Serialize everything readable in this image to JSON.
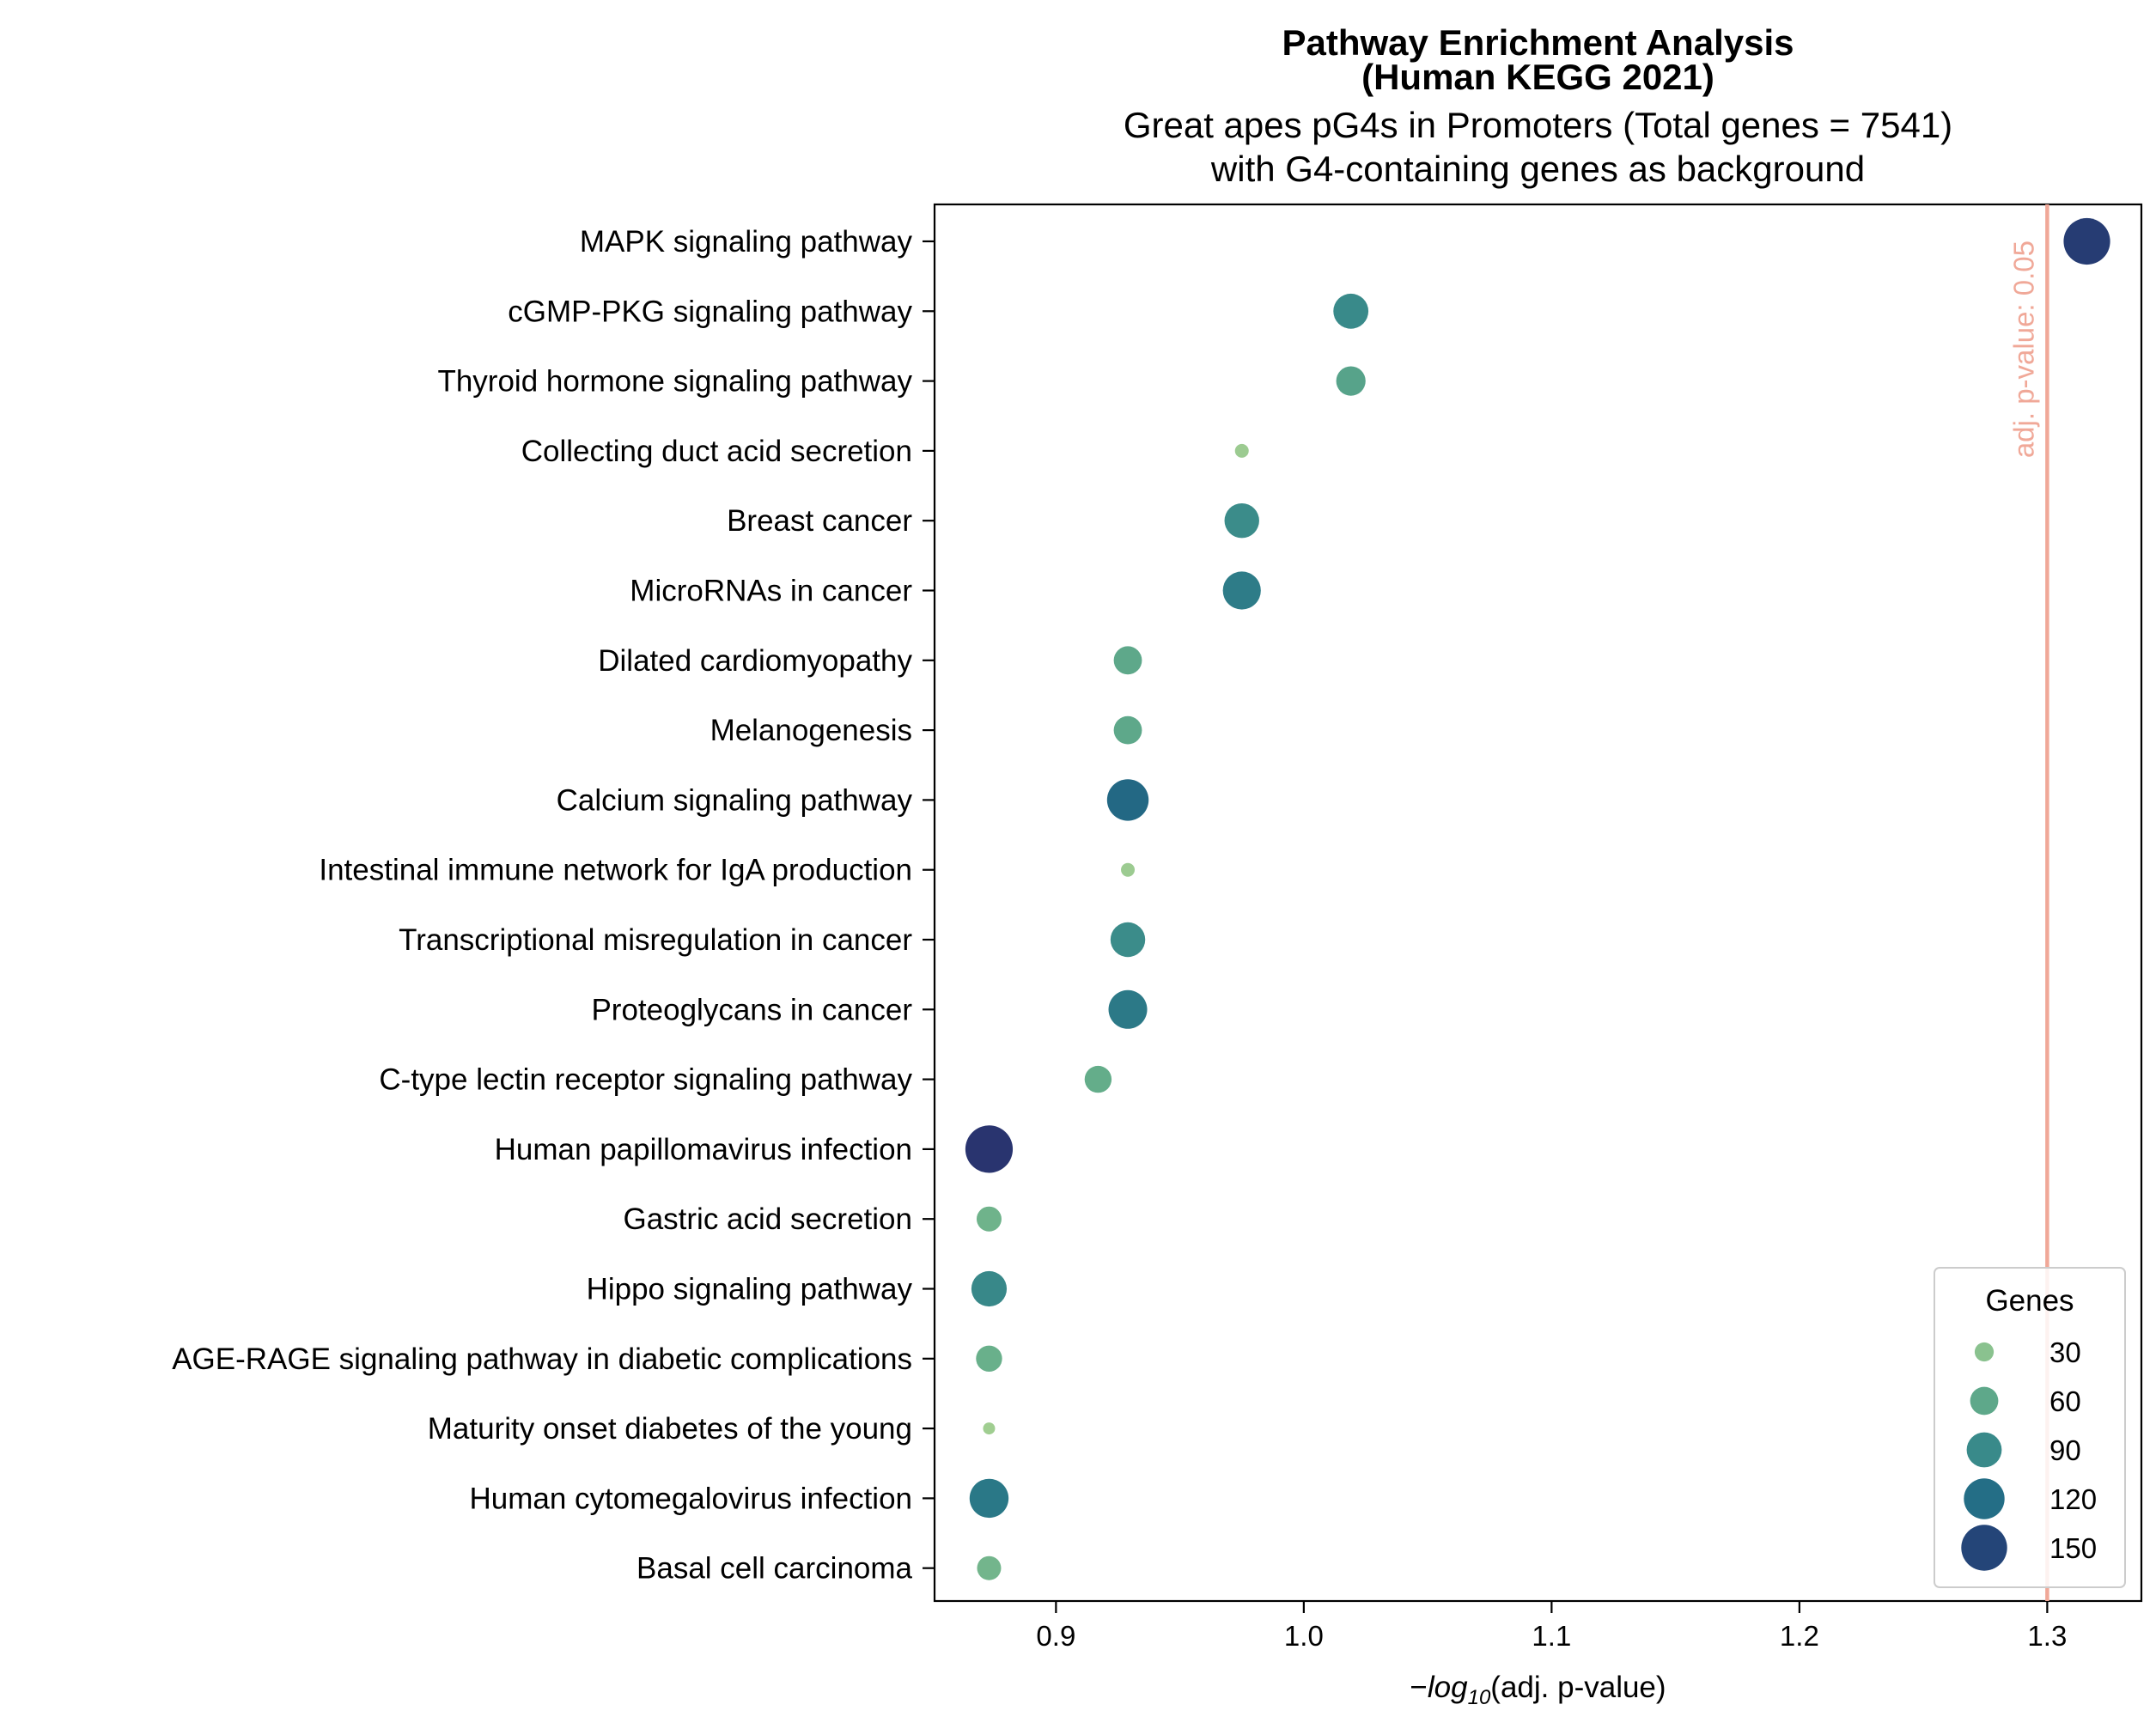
{
  "chart_data": {
    "type": "scatter",
    "title": "Pathway Enrichment Analysis\n(Human KEGG 2021)",
    "subtitle": "Great apes pG4s in Promoters (Total genes = 7541)\nwith G4-containing genes as background",
    "xlabel_prefix": "−",
    "xlabel_italic": "log",
    "xlabel_sub": "10",
    "xlabel_suffix": "(adj. p-value)",
    "xlim": [
      0.851,
      1.338
    ],
    "xticks": [
      0.9,
      1.0,
      1.1,
      1.2,
      1.3
    ],
    "xtick_labels": [
      "0.9",
      "1.0",
      "1.1",
      "1.2",
      "1.3"
    ],
    "threshold": {
      "x": 1.3,
      "label": "adj. p-value: 0.05",
      "color": "#f0a898"
    },
    "size_legend": {
      "title": "Genes",
      "placement": "lower-right",
      "values": [
        30,
        60,
        90,
        120,
        150
      ],
      "labels": [
        "30",
        "60",
        "90",
        "120",
        "150"
      ]
    },
    "points": [
      {
        "term": "MAPK signaling pathway",
        "x": 1.316,
        "genes": 155
      },
      {
        "term": "cGMP-PKG signaling pathway",
        "x": 1.019,
        "genes": 90
      },
      {
        "term": "Thyroid hormone signaling pathway",
        "x": 1.019,
        "genes": 65
      },
      {
        "term": "Collecting duct acid secretion",
        "x": 0.975,
        "genes": 18
      },
      {
        "term": "Breast cancer",
        "x": 0.975,
        "genes": 88
      },
      {
        "term": "MicroRNAs in cancer",
        "x": 0.975,
        "genes": 105
      },
      {
        "term": "Dilated cardiomyopathy",
        "x": 0.929,
        "genes": 60
      },
      {
        "term": "Melanogenesis",
        "x": 0.929,
        "genes": 60
      },
      {
        "term": "Calcium signaling pathway",
        "x": 0.929,
        "genes": 125
      },
      {
        "term": "Intestinal immune network for IgA production",
        "x": 0.929,
        "genes": 18
      },
      {
        "term": "Transcriptional misregulation in cancer",
        "x": 0.929,
        "genes": 88
      },
      {
        "term": "Proteoglycans in cancer",
        "x": 0.929,
        "genes": 108
      },
      {
        "term": "C-type lectin receptor signaling pathway",
        "x": 0.917,
        "genes": 55
      },
      {
        "term": "Human papillomavirus infection",
        "x": 0.873,
        "genes": 160
      },
      {
        "term": "Gastric acid secretion",
        "x": 0.873,
        "genes": 48
      },
      {
        "term": "Hippo signaling pathway",
        "x": 0.873,
        "genes": 92
      },
      {
        "term": "AGE-RAGE signaling pathway in diabetic complications",
        "x": 0.873,
        "genes": 52
      },
      {
        "term": "Maturity onset diabetes of the young",
        "x": 0.873,
        "genes": 15
      },
      {
        "term": "Human cytomegalovirus infection",
        "x": 0.873,
        "genes": 110
      },
      {
        "term": "Basal cell carcinoma",
        "x": 0.873,
        "genes": 45
      }
    ]
  }
}
